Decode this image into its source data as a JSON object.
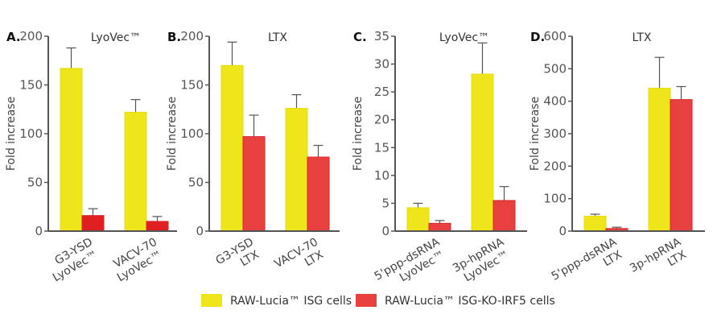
{
  "colors": {
    "yellow": "#eee51a",
    "red": "#e8403f",
    "red_panel_a": "#e02020",
    "axis": "#555555"
  },
  "legend": {
    "position": "bottom",
    "items": [
      "RAW-Lucia™ ISG cells",
      "RAW-Lucia™ ISG-KO-IRF5 cells"
    ]
  },
  "chart_data": [
    {
      "type": "bar",
      "panel": "A.",
      "title": "LyoVec™",
      "ylabel": "Fold increase",
      "ylim": [
        0,
        200
      ],
      "yticks": [
        0,
        50,
        100,
        150,
        200
      ],
      "categories": [
        [
          "G3-YSD",
          "LyoVec™"
        ],
        [
          "VACV-70",
          "LyoVec™"
        ]
      ],
      "series": [
        {
          "name": "RAW-Lucia™ ISG cells",
          "values": [
            167,
            122
          ],
          "errors": [
            21,
            13
          ]
        },
        {
          "name": "RAW-Lucia™ ISG-KO-IRF5 cells",
          "values": [
            16,
            10
          ],
          "errors": [
            7,
            5
          ]
        }
      ]
    },
    {
      "type": "bar",
      "panel": "B.",
      "title": "LTX",
      "ylabel": "Fold increase",
      "ylim": [
        0,
        200
      ],
      "yticks": [
        0,
        50,
        100,
        150,
        200
      ],
      "categories": [
        [
          "G3-YSD",
          "LTX"
        ],
        [
          "VACV-70",
          "LTX"
        ]
      ],
      "series": [
        {
          "name": "RAW-Lucia™ ISG cells",
          "values": [
            170,
            126
          ],
          "errors": [
            24,
            14
          ]
        },
        {
          "name": "RAW-Lucia™ ISG-KO-IRF5 cells",
          "values": [
            97,
            76
          ],
          "errors": [
            22,
            12
          ]
        }
      ]
    },
    {
      "type": "bar",
      "panel": "C.",
      "title": "LyoVec™",
      "ylabel": "Fold increase",
      "ylim": [
        0,
        35
      ],
      "yticks": [
        0,
        5,
        10,
        15,
        20,
        25,
        30,
        35
      ],
      "categories": [
        [
          "5'ppp-dsRNA",
          "LyoVec™"
        ],
        [
          "3p-hpRNA",
          "LyoVec™"
        ]
      ],
      "series": [
        {
          "name": "RAW-Lucia™ ISG cells",
          "values": [
            4.2,
            28.2
          ],
          "errors": [
            0.8,
            5.6
          ]
        },
        {
          "name": "RAW-Lucia™ ISG-KO-IRF5 cells",
          "values": [
            1.4,
            5.5
          ],
          "errors": [
            0.5,
            2.5
          ]
        }
      ]
    },
    {
      "type": "bar",
      "panel": "D.",
      "title": "LTX",
      "ylabel": "Fold increase",
      "ylim": [
        0,
        600
      ],
      "yticks": [
        0,
        100,
        200,
        300,
        400,
        500,
        600
      ],
      "categories": [
        [
          "5'ppp-dsRNA",
          "LTX"
        ],
        [
          "3p-hpRNA",
          "LTX"
        ]
      ],
      "series": [
        {
          "name": "RAW-Lucia™ ISG cells",
          "values": [
            46,
            440
          ],
          "errors": [
            6,
            95
          ]
        },
        {
          "name": "RAW-Lucia™ ISG-KO-IRF5 cells",
          "values": [
            8,
            405
          ],
          "errors": [
            4,
            40
          ]
        }
      ]
    }
  ]
}
